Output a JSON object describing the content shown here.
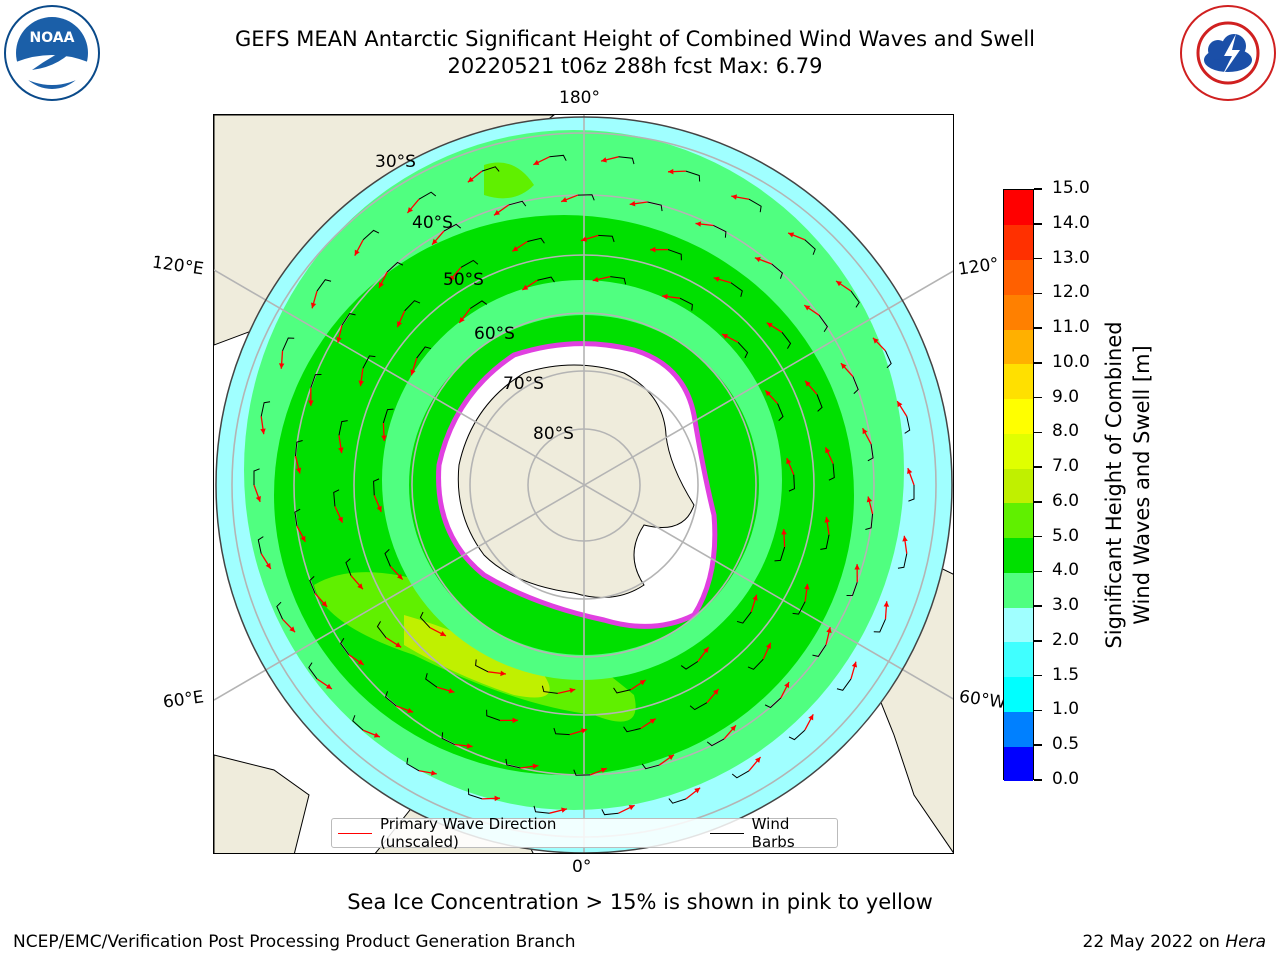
{
  "header": {
    "title_line1": "GEFS MEAN Antarctic Significant Height of Combined Wind Waves and Swell",
    "title_line2": "20220521 t06z 288h fcst   Max: 6.79"
  },
  "logos": {
    "left": "NOAA",
    "right": "NATIONAL WEATHER SERVICE"
  },
  "map": {
    "longitude_labels": {
      "top": "180°",
      "bottom": "0°",
      "left_upper": "120°E",
      "left_lower": "60°E",
      "right_upper": "120°",
      "right_lower": "60°W"
    },
    "latitude_labels": [
      "30°S",
      "40°S",
      "50°S",
      "60°S",
      "70°S",
      "80°S"
    ],
    "colors": {
      "land": "#efecdc",
      "ice_shelf": "#ffffff",
      "grid": "#b4b4b4",
      "sea_ice": "#e040e0",
      "arrow": "#ff0000"
    }
  },
  "legend": {
    "items": [
      {
        "label": "Primary Wave Direction (unscaled)",
        "color": "#ff0000"
      },
      {
        "label": "Wind Barbs",
        "color": "#000000"
      }
    ]
  },
  "colorbar": {
    "title_line1": "Significant Height of Combined",
    "title_line2": "Wind Waves and Swell [m]",
    "ticks": [
      "0.0",
      "0.5",
      "1.0",
      "1.5",
      "2.0",
      "3.0",
      "4.0",
      "5.0",
      "6.0",
      "7.0",
      "8.0",
      "9.0",
      "10.0",
      "11.0",
      "12.0",
      "13.0",
      "14.0",
      "15.0"
    ],
    "colors": [
      "#0000ff",
      "#0080ff",
      "#00ffff",
      "#40ffff",
      "#a0ffff",
      "#50ff80",
      "#00e000",
      "#60f000",
      "#c0f000",
      "#e0ff00",
      "#ffff00",
      "#ffe000",
      "#ffb000",
      "#ff8000",
      "#ff6000",
      "#ff3000",
      "#ff0000"
    ]
  },
  "footer": {
    "note": "Sea Ice Concentration > 15% is shown in pink to yellow",
    "credit": "NCEP/EMC/Verification Post Processing Product Generation Branch",
    "date_prefix": "22 May 2022 on ",
    "date_host": "Hera"
  }
}
